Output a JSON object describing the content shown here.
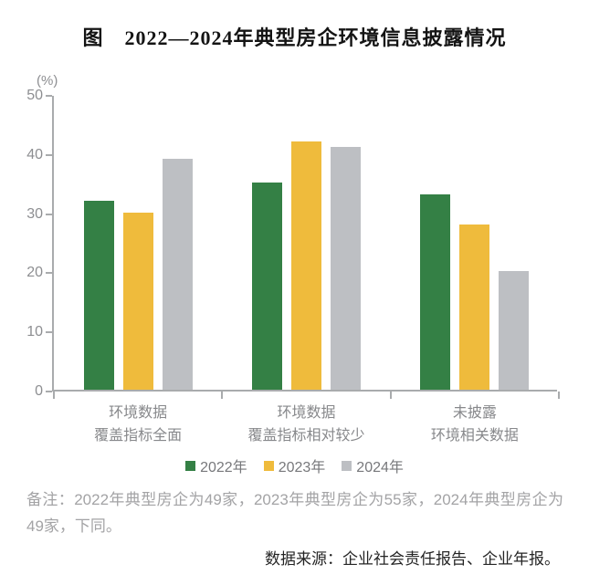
{
  "figure": {
    "title": "图　2022—2024年典型房企环境信息披露情况",
    "note": "备注：2022年典型房企为49家，2023年典型房企为55家，2024年典型房企为49家，下同。",
    "source": "数据来源：企业社会责任报告、企业年报。"
  },
  "chart_data": {
    "type": "bar",
    "title": "图　2022—2024年典型房企环境信息披露情况",
    "unit_label": "(%)",
    "categories": [
      "环境数据\n覆盖指标全面",
      "环境数据\n覆盖指标相对较少",
      "未披露\n环境相关数据"
    ],
    "series": [
      {
        "name": "2022年",
        "color": "#348045",
        "values": [
          32,
          35,
          33
        ]
      },
      {
        "name": "2023年",
        "color": "#efbb3c",
        "values": [
          30,
          42,
          28
        ]
      },
      {
        "name": "2024年",
        "color": "#bdbfc3",
        "values": [
          39,
          41,
          20
        ]
      }
    ],
    "ylim": [
      0,
      50
    ],
    "yticks": [
      0,
      10,
      20,
      30,
      40,
      50
    ],
    "xlabel": "",
    "ylabel": "(%)",
    "grid": false,
    "legend_position": "bottom"
  },
  "colors": {
    "axis": "#a9abad",
    "tick_label": "#8d8e91",
    "category_label": "#87888b",
    "legend_label": "#77787b",
    "note_text": "#a3a3a5",
    "title_text": "#141414",
    "source_text": "#242424",
    "background": "#ffffff"
  }
}
